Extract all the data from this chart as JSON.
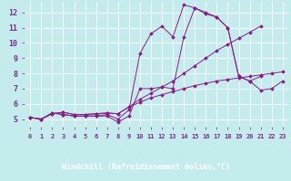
{
  "xlabel": "Windchill (Refroidissement éolien,°C)",
  "background_color": "#c5eced",
  "grid_color": "#aad4d6",
  "line_color": "#8b1a8b",
  "xlim": [
    -0.5,
    23.5
  ],
  "ylim": [
    4.5,
    12.7
  ],
  "yticks": [
    5,
    6,
    7,
    8,
    9,
    10,
    11,
    12
  ],
  "xticks": [
    0,
    1,
    2,
    3,
    4,
    5,
    6,
    7,
    8,
    9,
    10,
    11,
    12,
    13,
    14,
    15,
    16,
    17,
    18,
    19,
    20,
    21,
    22,
    23
  ],
  "series": [
    {
      "x": [
        0,
        1,
        2,
        3,
        4,
        5,
        6,
        7,
        8,
        9,
        10,
        11,
        12,
        13,
        14,
        15,
        16,
        17,
        18,
        19,
        20,
        21,
        22,
        23
      ],
      "y": [
        5.1,
        5.0,
        5.4,
        5.3,
        5.2,
        5.2,
        5.2,
        5.2,
        4.8,
        5.2,
        7.0,
        7.0,
        7.1,
        7.0,
        10.4,
        12.3,
        11.9,
        11.7,
        11.0,
        7.8,
        7.5,
        6.9,
        7.0,
        7.5
      ]
    },
    {
      "x": [
        0,
        1,
        2,
        3,
        4,
        5,
        6,
        7,
        8,
        9,
        10,
        11,
        12,
        13,
        14,
        15,
        16,
        17,
        18,
        19,
        20,
        21
      ],
      "y": [
        5.1,
        5.0,
        5.35,
        5.45,
        5.3,
        5.3,
        5.35,
        5.4,
        5.35,
        5.8,
        6.3,
        6.7,
        7.1,
        7.5,
        8.0,
        8.5,
        9.0,
        9.5,
        9.9,
        10.3,
        10.7,
        11.1
      ]
    },
    {
      "x": [
        0,
        1,
        2,
        3,
        4,
        5,
        6,
        7,
        8,
        9,
        10,
        11,
        12,
        13,
        14,
        15,
        16,
        17,
        18,
        19,
        20,
        21,
        22,
        23
      ],
      "y": [
        5.1,
        5.0,
        5.35,
        5.45,
        5.3,
        5.3,
        5.35,
        5.4,
        5.35,
        5.8,
        6.1,
        6.4,
        6.6,
        6.8,
        7.0,
        7.2,
        7.35,
        7.5,
        7.6,
        7.7,
        7.8,
        7.9,
        8.0,
        8.1
      ]
    },
    {
      "x": [
        0,
        1,
        2,
        3,
        4,
        5,
        6,
        7,
        8,
        9,
        10,
        11,
        12,
        13,
        14,
        15,
        16,
        17,
        18,
        19,
        20,
        21
      ],
      "y": [
        5.1,
        5.0,
        5.4,
        5.3,
        5.2,
        5.2,
        5.2,
        5.3,
        5.0,
        5.6,
        9.3,
        10.6,
        11.1,
        10.4,
        12.5,
        12.3,
        12.0,
        11.7,
        11.0,
        7.8,
        7.5,
        7.8
      ]
    }
  ],
  "xlabel_bar_color": "#7b2d8b",
  "xlabel_text_color": "#ffffff",
  "tick_color": "#7b2d8b",
  "tick_fontsize": 5,
  "ylabel_fontsize": 6
}
